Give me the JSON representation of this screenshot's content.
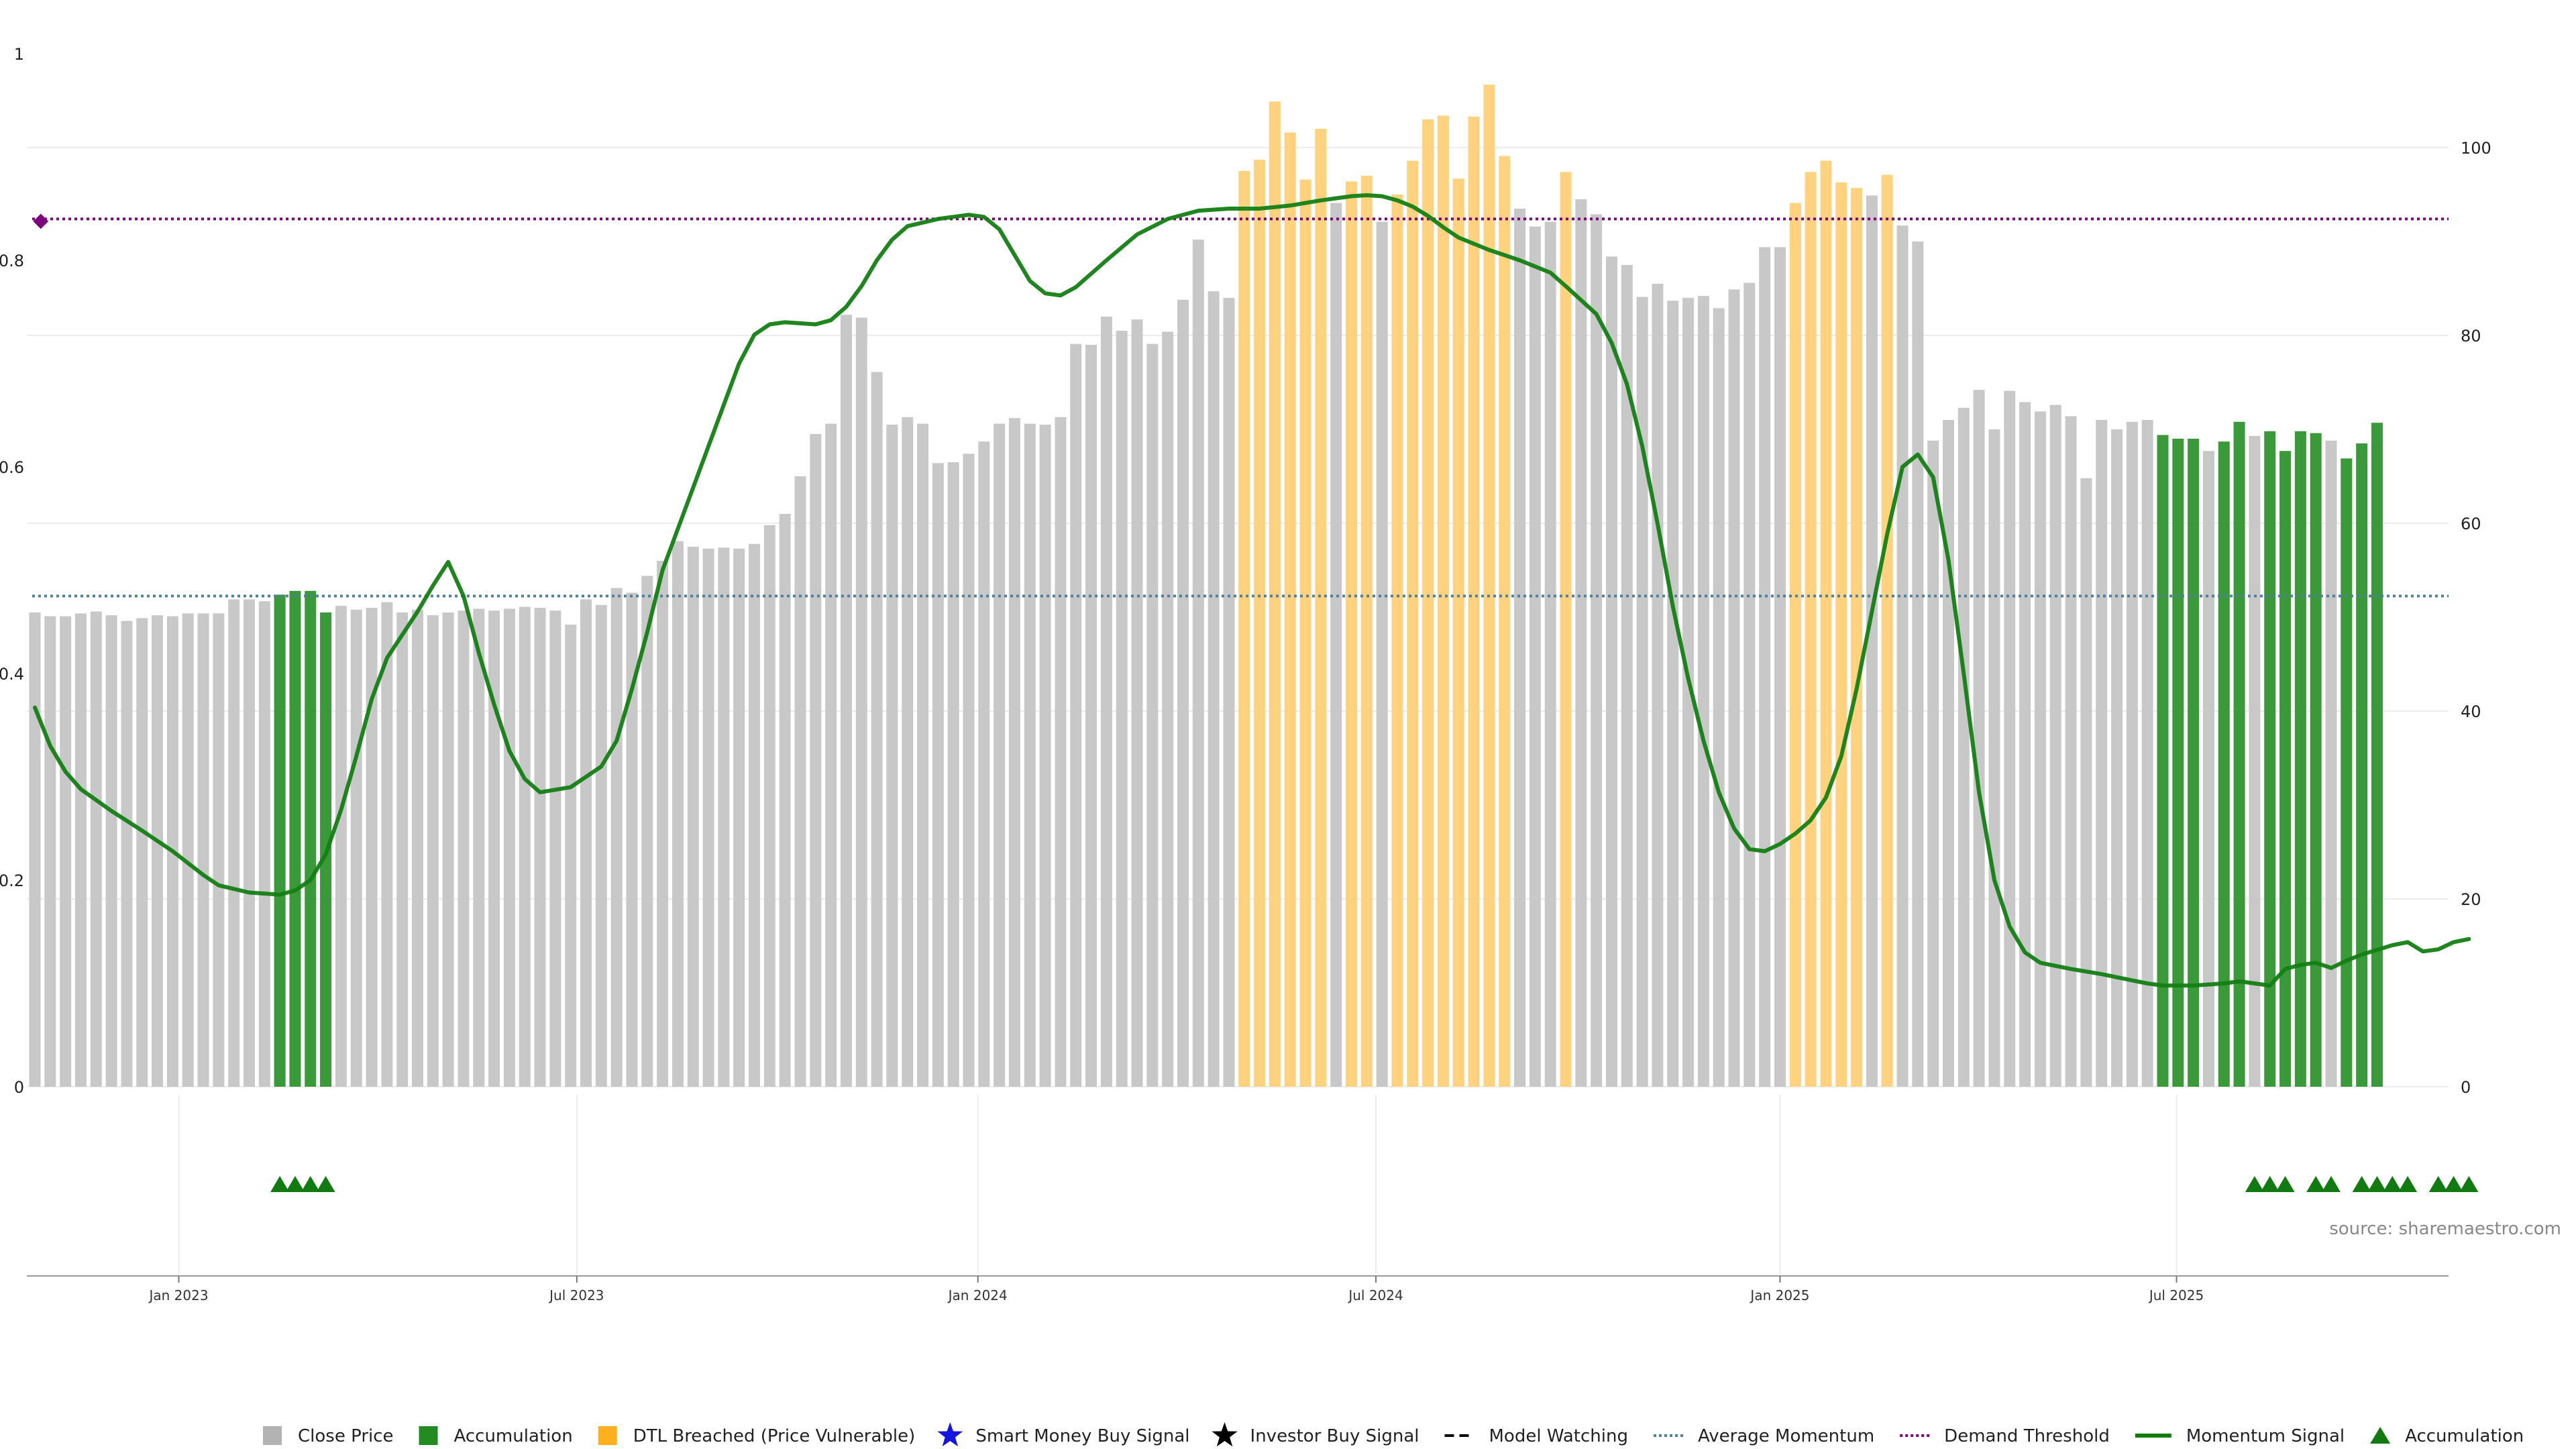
{
  "chart_data": {
    "type": "bar",
    "title": "",
    "xlabel": "",
    "ylabel": "",
    "left_axis": {
      "ylim": [
        0,
        1
      ],
      "ticks": [
        "0",
        "0.2",
        "0.4",
        "0.6",
        "0.8",
        "1"
      ]
    },
    "right_axis": {
      "ylim": [
        0,
        110
      ],
      "ticks": [
        "0",
        "20",
        "40",
        "60",
        "80",
        "100"
      ]
    },
    "x_ticks": [
      "Jan 2023",
      "Jul 2023",
      "Jan 2024",
      "Jul 2024",
      "Jan 2025",
      "Jul 2025"
    ],
    "x_tick_weeks": [
      9.4,
      35.4,
      61.6,
      87.6,
      114.0,
      139.9
    ],
    "grid": true,
    "legend_position": "bottom",
    "source": "source: sharemaestro.com",
    "colors": {
      "close": "#c8c8c8",
      "accumulation": "#3a9a3a",
      "dtl": "#ffd280",
      "momentum": "#138013",
      "average": "#4f7f9f",
      "demand": "#7f007f",
      "marker": "#117a11"
    },
    "close_price": [
      50.5,
      50.1,
      50.1,
      50.4,
      50.6,
      50.2,
      49.6,
      49.9,
      50.2,
      50.1,
      50.4,
      50.4,
      50.4,
      51.9,
      51.9,
      51.7,
      52.4,
      52.8,
      52.8,
      50.5,
      51.2,
      50.8,
      51.0,
      51.6,
      50.5,
      50.8,
      50.2,
      50.5,
      50.7,
      50.9,
      50.7,
      50.9,
      51.1,
      51.0,
      50.7,
      49.2,
      51.9,
      51.3,
      53.1,
      52.6,
      54.4,
      56.0,
      58.1,
      57.5,
      57.3,
      57.4,
      57.3,
      57.8,
      59.8,
      61.0,
      65.0,
      69.5,
      70.6,
      82.2,
      81.9,
      76.1,
      70.5,
      71.3,
      70.6,
      66.4,
      66.5,
      67.4,
      68.7,
      70.6,
      71.2,
      70.6,
      70.5,
      71.3,
      79.1,
      79.0,
      82.0,
      80.5,
      81.7,
      79.1,
      80.4,
      83.8,
      90.2,
      84.7,
      84.0,
      97.5,
      98.7,
      104.9,
      101.6,
      96.6,
      102.0,
      94.1,
      96.4,
      97.0,
      92.1,
      95.0,
      98.6,
      103.0,
      103.4,
      96.7,
      103.3,
      106.7,
      99.1,
      93.5,
      91.6,
      92.1,
      97.4,
      94.5,
      92.9,
      88.4,
      87.5,
      84.1,
      85.5,
      83.7,
      84.0,
      84.2,
      82.9,
      84.9,
      85.6,
      89.4,
      89.4,
      94.1,
      97.4,
      98.6,
      96.3,
      95.7,
      94.9,
      97.1,
      91.7,
      90.0,
      68.8,
      71.0,
      72.3,
      74.2,
      70.0,
      74.1,
      72.9,
      71.9,
      72.6,
      71.4,
      64.8,
      71.0,
      70.0,
      70.8,
      71.0,
      69.4,
      69.0,
      69.0,
      67.7,
      68.7,
      70.8,
      69.3,
      69.8,
      67.7,
      69.8,
      69.6,
      68.8,
      66.9,
      68.5,
      70.7
    ],
    "bar_categories": [
      "close",
      "accumulation",
      "dtl"
    ],
    "bar_category": [
      0,
      0,
      0,
      0,
      0,
      0,
      0,
      0,
      0,
      0,
      0,
      0,
      0,
      0,
      0,
      0,
      1,
      1,
      1,
      1,
      0,
      0,
      0,
      0,
      0,
      0,
      0,
      0,
      0,
      0,
      0,
      0,
      0,
      0,
      0,
      0,
      0,
      0,
      0,
      0,
      0,
      0,
      0,
      0,
      0,
      0,
      0,
      0,
      0,
      0,
      0,
      0,
      0,
      0,
      0,
      0,
      0,
      0,
      0,
      0,
      0,
      0,
      0,
      0,
      0,
      0,
      0,
      0,
      0,
      0,
      0,
      0,
      0,
      0,
      0,
      0,
      0,
      0,
      0,
      2,
      2,
      2,
      2,
      2,
      2,
      0,
      2,
      2,
      0,
      2,
      2,
      2,
      2,
      2,
      2,
      2,
      2,
      0,
      0,
      0,
      2,
      0,
      0,
      0,
      0,
      0,
      0,
      0,
      0,
      0,
      0,
      0,
      0,
      0,
      0,
      2,
      2,
      2,
      2,
      2,
      0,
      2,
      0,
      0,
      0,
      0,
      0,
      0,
      0,
      0,
      0,
      0,
      0,
      0,
      0,
      0,
      0,
      0,
      0,
      1,
      1,
      1,
      0,
      1,
      1,
      0,
      1,
      1,
      1,
      1,
      0,
      1,
      1,
      1
    ],
    "momentum_signal": [
      [
        0,
        0.367
      ],
      [
        1,
        0.33
      ],
      [
        2,
        0.305
      ],
      [
        3,
        0.288
      ],
      [
        5,
        0.267
      ],
      [
        7,
        0.248
      ],
      [
        9,
        0.228
      ],
      [
        11,
        0.205
      ],
      [
        12,
        0.195
      ],
      [
        14,
        0.188
      ],
      [
        16,
        0.186
      ],
      [
        17,
        0.19
      ],
      [
        18,
        0.2
      ],
      [
        19,
        0.225
      ],
      [
        20,
        0.268
      ],
      [
        21,
        0.32
      ],
      [
        22,
        0.375
      ],
      [
        23,
        0.415
      ],
      [
        25,
        0.46
      ],
      [
        26,
        0.485
      ],
      [
        27,
        0.508
      ],
      [
        28,
        0.475
      ],
      [
        29,
        0.42
      ],
      [
        30,
        0.37
      ],
      [
        31,
        0.325
      ],
      [
        32,
        0.298
      ],
      [
        33,
        0.285
      ],
      [
        35,
        0.29
      ],
      [
        37,
        0.31
      ],
      [
        38,
        0.335
      ],
      [
        39,
        0.385
      ],
      [
        40,
        0.44
      ],
      [
        41,
        0.5
      ],
      [
        43,
        0.58
      ],
      [
        45,
        0.66
      ],
      [
        46,
        0.7
      ],
      [
        47,
        0.728
      ],
      [
        48,
        0.738
      ],
      [
        49,
        0.74
      ],
      [
        51,
        0.738
      ],
      [
        52,
        0.742
      ],
      [
        53,
        0.755
      ],
      [
        54,
        0.775
      ],
      [
        55,
        0.8
      ],
      [
        56,
        0.82
      ],
      [
        57,
        0.833
      ],
      [
        59,
        0.84
      ],
      [
        61,
        0.844
      ],
      [
        62,
        0.842
      ],
      [
        63,
        0.83
      ],
      [
        64,
        0.805
      ],
      [
        65,
        0.78
      ],
      [
        66,
        0.768
      ],
      [
        67,
        0.766
      ],
      [
        68,
        0.774
      ],
      [
        70,
        0.8
      ],
      [
        72,
        0.825
      ],
      [
        74,
        0.84
      ],
      [
        76,
        0.848
      ],
      [
        78,
        0.85
      ],
      [
        80,
        0.85
      ],
      [
        82,
        0.853
      ],
      [
        84,
        0.858
      ],
      [
        86,
        0.862
      ],
      [
        87,
        0.863
      ],
      [
        88,
        0.862
      ],
      [
        89,
        0.858
      ],
      [
        90,
        0.852
      ],
      [
        91,
        0.843
      ],
      [
        92,
        0.832
      ],
      [
        93,
        0.822
      ],
      [
        95,
        0.81
      ],
      [
        97,
        0.8
      ],
      [
        99,
        0.788
      ],
      [
        100,
        0.775
      ],
      [
        102,
        0.748
      ],
      [
        103,
        0.72
      ],
      [
        104,
        0.68
      ],
      [
        105,
        0.62
      ],
      [
        106,
        0.545
      ],
      [
        107,
        0.465
      ],
      [
        108,
        0.395
      ],
      [
        109,
        0.335
      ],
      [
        110,
        0.285
      ],
      [
        111,
        0.25
      ],
      [
        112,
        0.23
      ],
      [
        113,
        0.228
      ],
      [
        114,
        0.235
      ],
      [
        115,
        0.245
      ],
      [
        116,
        0.258
      ],
      [
        117,
        0.28
      ],
      [
        118,
        0.32
      ],
      [
        119,
        0.385
      ],
      [
        120,
        0.46
      ],
      [
        121,
        0.535
      ],
      [
        122,
        0.6
      ],
      [
        123,
        0.612
      ],
      [
        124,
        0.59
      ],
      [
        125,
        0.51
      ],
      [
        126,
        0.4
      ],
      [
        127,
        0.285
      ],
      [
        128,
        0.2
      ],
      [
        129,
        0.155
      ],
      [
        130,
        0.13
      ],
      [
        131,
        0.12
      ],
      [
        133,
        0.114
      ],
      [
        135,
        0.109
      ],
      [
        137,
        0.103
      ],
      [
        138,
        0.1
      ],
      [
        139,
        0.098
      ],
      [
        141,
        0.098
      ],
      [
        143,
        0.1
      ],
      [
        144,
        0.102
      ],
      [
        145,
        0.1
      ],
      [
        146,
        0.098
      ],
      [
        147,
        0.114
      ],
      [
        148,
        0.118
      ],
      [
        149,
        0.12
      ],
      [
        150,
        0.115
      ],
      [
        151,
        0.122
      ],
      [
        152,
        0.128
      ],
      [
        154,
        0.137
      ],
      [
        155,
        0.14
      ],
      [
        156,
        0.131
      ],
      [
        157,
        0.133
      ],
      [
        158,
        0.14
      ],
      [
        159,
        0.143
      ]
    ],
    "average_momentum": 0.475,
    "demand_threshold": 0.84,
    "accumulation_markers": [
      16,
      17,
      18,
      19,
      145,
      146,
      147,
      149,
      150,
      152,
      153,
      154,
      155,
      157,
      158,
      159
    ]
  },
  "legend": [
    {
      "label": "Close Price",
      "symbol": "square",
      "color": "#b3b3b3"
    },
    {
      "label": "Accumulation",
      "symbol": "square",
      "color": "#228b22"
    },
    {
      "label": "DTL Breached (Price Vulnerable)",
      "symbol": "square",
      "color": "#ffb01f"
    },
    {
      "label": "Smart Money Buy Signal",
      "symbol": "star",
      "color": "#1515e0"
    },
    {
      "label": "Investor Buy Signal",
      "symbol": "star",
      "color": "#000000"
    },
    {
      "label": "Model Watching",
      "symbol": "dash",
      "color": "#000000"
    },
    {
      "label": "Average Momentum",
      "symbol": "dotted",
      "color": "#4f7f9f"
    },
    {
      "label": "Demand Threshold",
      "symbol": "dotted",
      "color": "#7f007f"
    },
    {
      "label": "Momentum Signal",
      "symbol": "line",
      "color": "#117a11"
    },
    {
      "label": "Accumulation",
      "symbol": "triangle",
      "color": "#117a11"
    }
  ]
}
